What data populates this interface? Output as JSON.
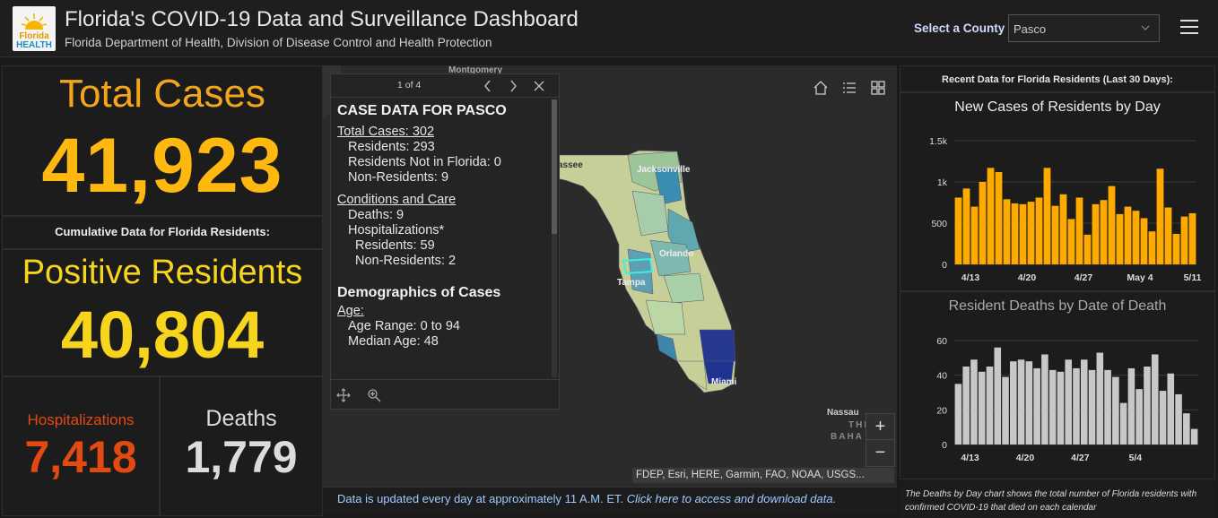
{
  "header": {
    "logo_line1": "Florida",
    "logo_line2": "HEALTH",
    "title": "Florida's COVID-19 Data and Surveillance Dashboard",
    "subtitle": "Florida Department of Health, Division of Disease Control and Health Protection",
    "county_label": "Select a County",
    "county_value": "Pasco"
  },
  "stats": {
    "total_cases_label": "Total Cases",
    "total_cases_value": "41,923",
    "cumulative_label": "Cumulative Data for Florida Residents:",
    "positive_label": "Positive Residents",
    "positive_value": "40,804",
    "hosp_label": "Hospitalizations",
    "hosp_value": "7,418",
    "deaths_label": "Deaths",
    "deaths_value": "1,779"
  },
  "popup": {
    "pager": "1 of 4",
    "heading": "CASE DATA FOR PASCO",
    "total_cases": "Total Cases: 302",
    "residents": "Residents: 293",
    "not_in_fl": "Residents Not in Florida: 0",
    "non_residents": "Non-Residents: 9",
    "conditions": "Conditions and Care",
    "deaths": "Deaths: 9",
    "hosp": "Hospitalizations*",
    "hosp_res": "Residents: 59",
    "hosp_nonres": "Non-Residents: 2",
    "demo": "Demographics of Cases",
    "age": "Age:",
    "age_range": "Age Range: 0 to 94",
    "median_age": "Median Age: 48"
  },
  "map": {
    "cities": [
      "Jacksonville",
      "Orlando",
      "Tampa",
      "Miami",
      "Nassau",
      "THE",
      "BAHA",
      "Montgomery",
      "assee"
    ],
    "attribution": "FDEP, Esri, HERE, Garmin, FAO, NOAA, USGS...",
    "note_plain": "Data is updated every day at approximately 11 A.M. ET. ",
    "note_link": "Click here to access and download data.",
    "icons": [
      "home-icon",
      "list-icon",
      "grid-icon",
      "move-icon",
      "zoom-to-icon",
      "zoom-in-icon",
      "zoom-out-icon"
    ],
    "zoom_in": "+",
    "zoom_out": "−"
  },
  "right": {
    "header": "Recent Data for Florida Residents (Last 30 Days):",
    "footnote": "The Deaths by Day chart shows the total number of Florida residents with confirmed COVID-19 that died on each calendar"
  },
  "colors": {
    "orange_title": "#f2a51a",
    "yellow_value": "#ffb80f",
    "positive_yellow": "#f7d51c",
    "hosp_red": "#e34a12",
    "deaths_grey": "#dcdcdc",
    "bar_orange": "#ffaa00",
    "bar_grey": "#c8c8c8"
  },
  "chart_data": [
    {
      "type": "bar",
      "title": "New Cases of Residents by Day",
      "ylim": [
        0,
        1500
      ],
      "yticks": [
        "0",
        "500",
        "1k",
        "1.5k"
      ],
      "ytick_values": [
        0,
        500,
        1000,
        1500
      ],
      "xticks": [
        "4/13",
        "4/20",
        "4/27",
        "May 4",
        "5/11"
      ],
      "xtick_index": [
        1.5,
        8.5,
        15.5,
        22.5,
        29
      ],
      "values": [
        810,
        920,
        700,
        1000,
        1170,
        1120,
        790,
        740,
        730,
        760,
        810,
        1170,
        710,
        850,
        550,
        810,
        360,
        730,
        780,
        950,
        610,
        700,
        650,
        560,
        400,
        1160,
        690,
        370,
        580,
        620
      ]
    },
    {
      "type": "bar",
      "title": "Resident Deaths by Date of Death",
      "ylim": [
        0,
        60
      ],
      "yticks": [
        "0",
        "20",
        "40",
        "60"
      ],
      "ytick_values": [
        0,
        20,
        40,
        60
      ],
      "xticks": [
        "4/13",
        "4/20",
        "4/27",
        "5/4"
      ],
      "xtick_index": [
        1.5,
        8.5,
        15.5,
        22.5
      ],
      "values": [
        35,
        45,
        49,
        42,
        45,
        56,
        39,
        48,
        49,
        48,
        44,
        52,
        43,
        42,
        49,
        44,
        49,
        43,
        53,
        43,
        39,
        24,
        44,
        32,
        45,
        52,
        31,
        41,
        29,
        18,
        9
      ]
    }
  ]
}
